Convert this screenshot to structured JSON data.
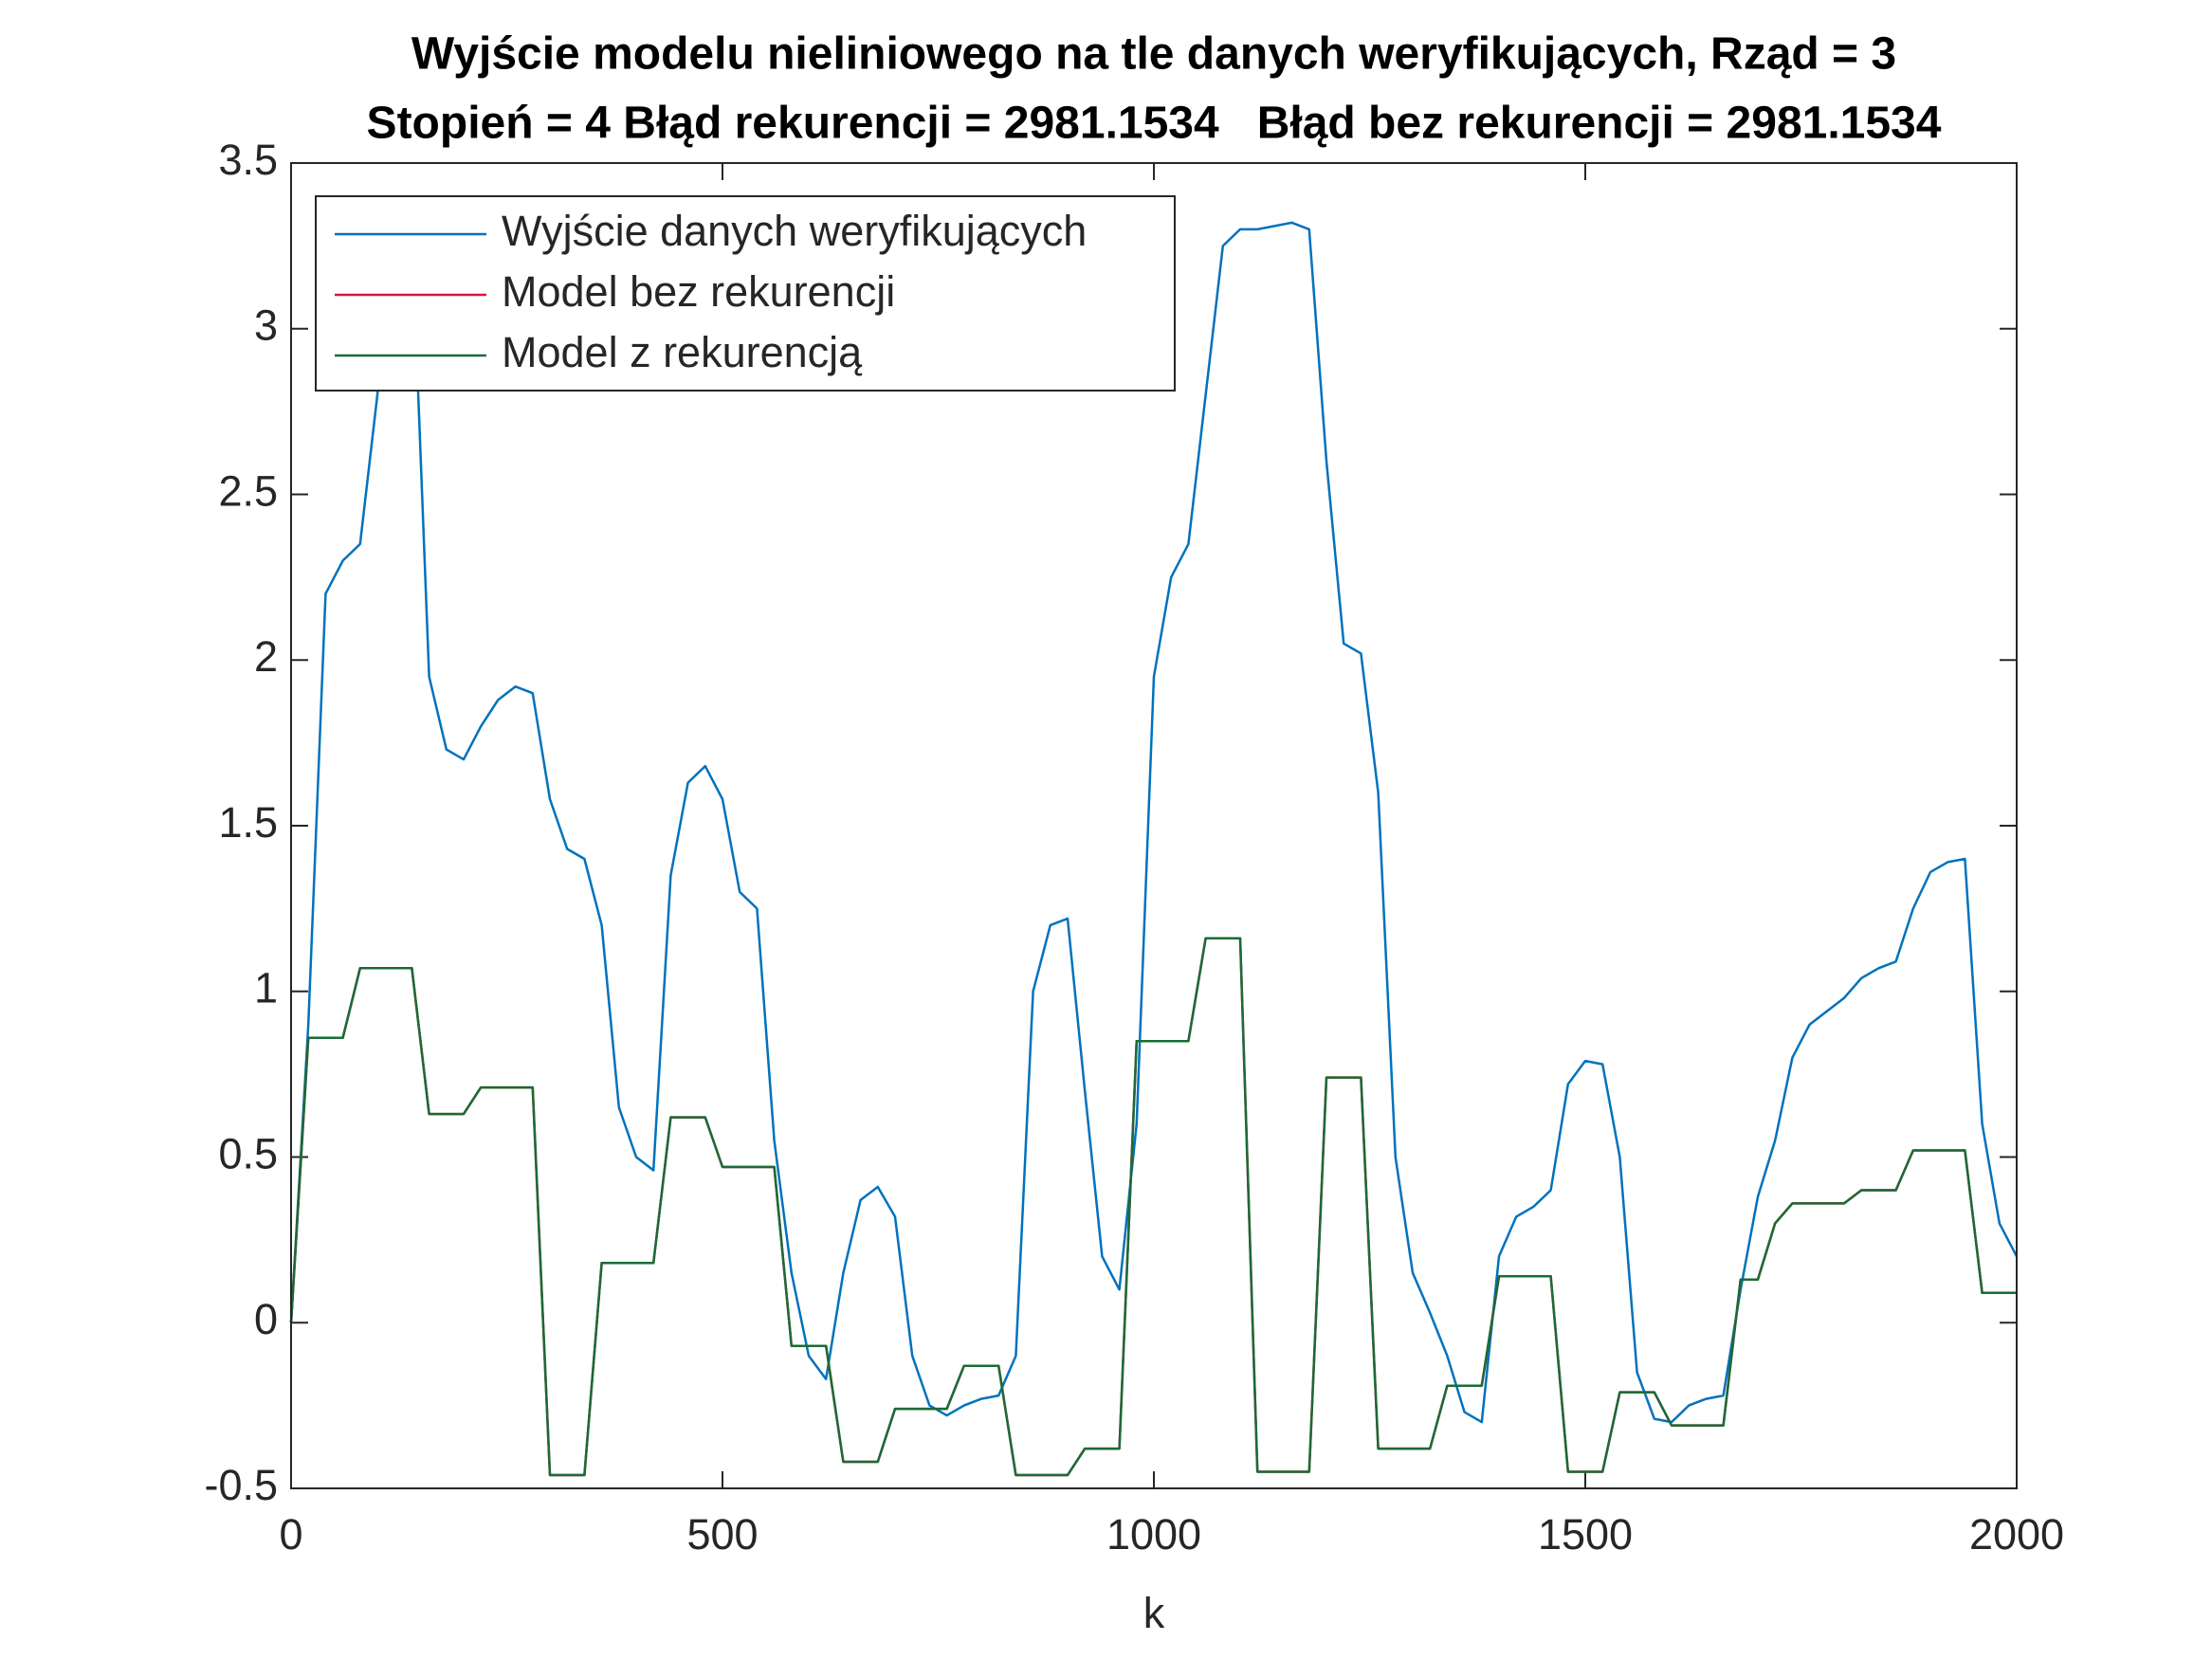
{
  "chart_data": {
    "type": "line",
    "title": "Wyjście modelu nieliniowego na tle danych weryfikujących, Rząd = 3",
    "subtitle": "Stopień = 4 Błąd rekurencji = 2981.1534   Błąd bez rekurencji = 2981.1534",
    "x_label": "k",
    "xlim": [
      0,
      2000
    ],
    "xticks": [
      0,
      500,
      1000,
      1500,
      2000
    ],
    "ylim": [
      -0.5,
      3.5
    ],
    "yticks": [
      -0.5,
      0,
      0.5,
      1,
      1.5,
      2,
      2.5,
      3,
      3.5
    ],
    "legend": "upper-left",
    "x": [
      0,
      20,
      40,
      60,
      80,
      100,
      120,
      140,
      160,
      180,
      200,
      220,
      240,
      260,
      280,
      300,
      320,
      340,
      360,
      380,
      400,
      420,
      440,
      460,
      480,
      500,
      520,
      540,
      560,
      580,
      600,
      620,
      640,
      660,
      680,
      700,
      720,
      740,
      760,
      780,
      800,
      820,
      840,
      860,
      880,
      900,
      920,
      940,
      960,
      980,
      1000,
      1020,
      1040,
      1060,
      1080,
      1100,
      1120,
      1140,
      1160,
      1180,
      1200,
      1220,
      1240,
      1260,
      1280,
      1300,
      1320,
      1340,
      1360,
      1380,
      1400,
      1420,
      1440,
      1460,
      1480,
      1500,
      1520,
      1540,
      1560,
      1580,
      1600,
      1620,
      1640,
      1660,
      1680,
      1700,
      1720,
      1740,
      1760,
      1780,
      1800,
      1820,
      1840,
      1860,
      1880,
      1900,
      1920,
      1940,
      1960,
      1980,
      2000
    ],
    "series": [
      {
        "name": "Wyjście danych weryfikujących",
        "color": "#0072bd",
        "values": [
          0,
          0.9,
          2.2,
          2.3,
          2.35,
          2.8,
          3.3,
          3.3,
          1.95,
          1.73,
          1.7,
          1.8,
          1.88,
          1.92,
          1.9,
          1.58,
          1.43,
          1.4,
          1.2,
          0.65,
          0.5,
          0.46,
          1.35,
          1.63,
          1.68,
          1.58,
          1.3,
          1.25,
          0.55,
          0.15,
          -0.1,
          -0.17,
          0.15,
          0.37,
          0.41,
          0.32,
          -0.1,
          -0.25,
          -0.28,
          -0.25,
          -0.23,
          -0.22,
          -0.1,
          1.0,
          1.2,
          1.22,
          0.7,
          0.2,
          0.1,
          0.6,
          1.95,
          2.25,
          2.35,
          2.8,
          3.25,
          3.3,
          3.3,
          3.31,
          3.32,
          3.3,
          2.6,
          2.05,
          2.02,
          1.6,
          0.5,
          0.15,
          0.03,
          -0.1,
          -0.27,
          -0.3,
          0.2,
          0.32,
          0.35,
          0.4,
          0.72,
          0.79,
          0.78,
          0.5,
          -0.15,
          -0.29,
          -0.3,
          -0.25,
          -0.23,
          -0.22,
          0.1,
          0.38,
          0.55,
          0.8,
          0.9,
          0.94,
          0.98,
          1.04,
          1.07,
          1.09,
          1.25,
          1.36,
          1.39,
          1.4,
          0.6,
          0.3,
          0.2
        ]
      },
      {
        "name": "Model bez rekurencji",
        "color": "#d9163c",
        "values": [
          0,
          0.86,
          0.86,
          0.86,
          1.07,
          1.07,
          1.07,
          1.07,
          0.63,
          0.63,
          0.63,
          0.71,
          0.71,
          0.71,
          0.71,
          -0.46,
          -0.46,
          -0.46,
          0.18,
          0.18,
          0.18,
          0.18,
          0.62,
          0.62,
          0.62,
          0.47,
          0.47,
          0.47,
          0.47,
          -0.07,
          -0.07,
          -0.07,
          -0.42,
          -0.42,
          -0.42,
          -0.26,
          -0.26,
          -0.26,
          -0.26,
          -0.13,
          -0.13,
          -0.13,
          -0.46,
          -0.46,
          -0.46,
          -0.46,
          -0.38,
          -0.38,
          -0.38,
          0.85,
          0.85,
          0.85,
          0.85,
          1.16,
          1.16,
          1.16,
          -0.45,
          -0.45,
          -0.45,
          -0.45,
          0.74,
          0.74,
          0.74,
          -0.38,
          -0.38,
          -0.38,
          -0.38,
          -0.19,
          -0.19,
          -0.19,
          0.14,
          0.14,
          0.14,
          0.14,
          -0.45,
          -0.45,
          -0.45,
          -0.21,
          -0.21,
          -0.21,
          -0.31,
          -0.31,
          -0.31,
          -0.31,
          0.13,
          0.13,
          0.3,
          0.36,
          0.36,
          0.36,
          0.36,
          0.4,
          0.4,
          0.4,
          0.52,
          0.52,
          0.52,
          0.52,
          0.09,
          0.09,
          0.09
        ]
      },
      {
        "name": "Model z rekurencją",
        "color": "#1a6b35",
        "values": [
          0,
          0.86,
          0.86,
          0.86,
          1.07,
          1.07,
          1.07,
          1.07,
          0.63,
          0.63,
          0.63,
          0.71,
          0.71,
          0.71,
          0.71,
          -0.46,
          -0.46,
          -0.46,
          0.18,
          0.18,
          0.18,
          0.18,
          0.62,
          0.62,
          0.62,
          0.47,
          0.47,
          0.47,
          0.47,
          -0.07,
          -0.07,
          -0.07,
          -0.42,
          -0.42,
          -0.42,
          -0.26,
          -0.26,
          -0.26,
          -0.26,
          -0.13,
          -0.13,
          -0.13,
          -0.46,
          -0.46,
          -0.46,
          -0.46,
          -0.38,
          -0.38,
          -0.38,
          0.85,
          0.85,
          0.85,
          0.85,
          1.16,
          1.16,
          1.16,
          -0.45,
          -0.45,
          -0.45,
          -0.45,
          0.74,
          0.74,
          0.74,
          -0.38,
          -0.38,
          -0.38,
          -0.38,
          -0.19,
          -0.19,
          -0.19,
          0.14,
          0.14,
          0.14,
          0.14,
          -0.45,
          -0.45,
          -0.45,
          -0.21,
          -0.21,
          -0.21,
          -0.31,
          -0.31,
          -0.31,
          -0.31,
          0.13,
          0.13,
          0.3,
          0.36,
          0.36,
          0.36,
          0.36,
          0.4,
          0.4,
          0.4,
          0.52,
          0.52,
          0.52,
          0.52,
          0.09,
          0.09,
          0.09
        ]
      }
    ]
  }
}
